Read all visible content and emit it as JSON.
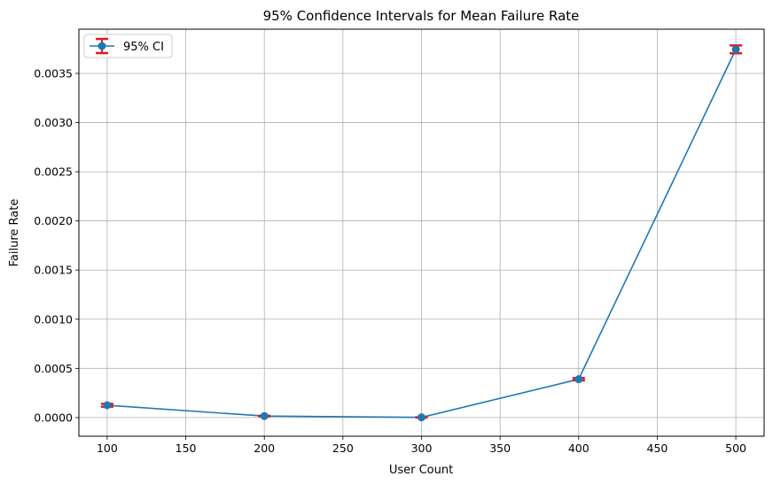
{
  "chart_data": {
    "type": "line",
    "title": "95% Confidence Intervals for Mean Failure Rate",
    "xlabel": "User Count",
    "ylabel": "Failure Rate",
    "xlim": [
      82,
      518
    ],
    "ylim": [
      -0.00019,
      0.00395
    ],
    "xticks": [
      100,
      150,
      200,
      250,
      300,
      350,
      400,
      450,
      500
    ],
    "yticks": [
      0.0,
      0.0005,
      0.001,
      0.0015,
      0.002,
      0.0025,
      0.003,
      0.0035
    ],
    "ytick_labels": [
      "0.0000",
      "0.0005",
      "0.0010",
      "0.0015",
      "0.0020",
      "0.0025",
      "0.0030",
      "0.0035"
    ],
    "grid": true,
    "legend": {
      "position": "top-left",
      "entries": [
        "95% CI"
      ]
    },
    "series": [
      {
        "name": "95% CI",
        "color": "#1f77b4",
        "errorbar_color": "#e41a1c",
        "x": [
          100,
          200,
          300,
          400,
          500
        ],
        "y": [
          0.000125,
          1.5e-05,
          2e-06,
          0.00039,
          0.003745
        ],
        "yerr": [
          1.5e-05,
          3e-06,
          1e-06,
          1.2e-05,
          4e-05
        ]
      }
    ]
  }
}
